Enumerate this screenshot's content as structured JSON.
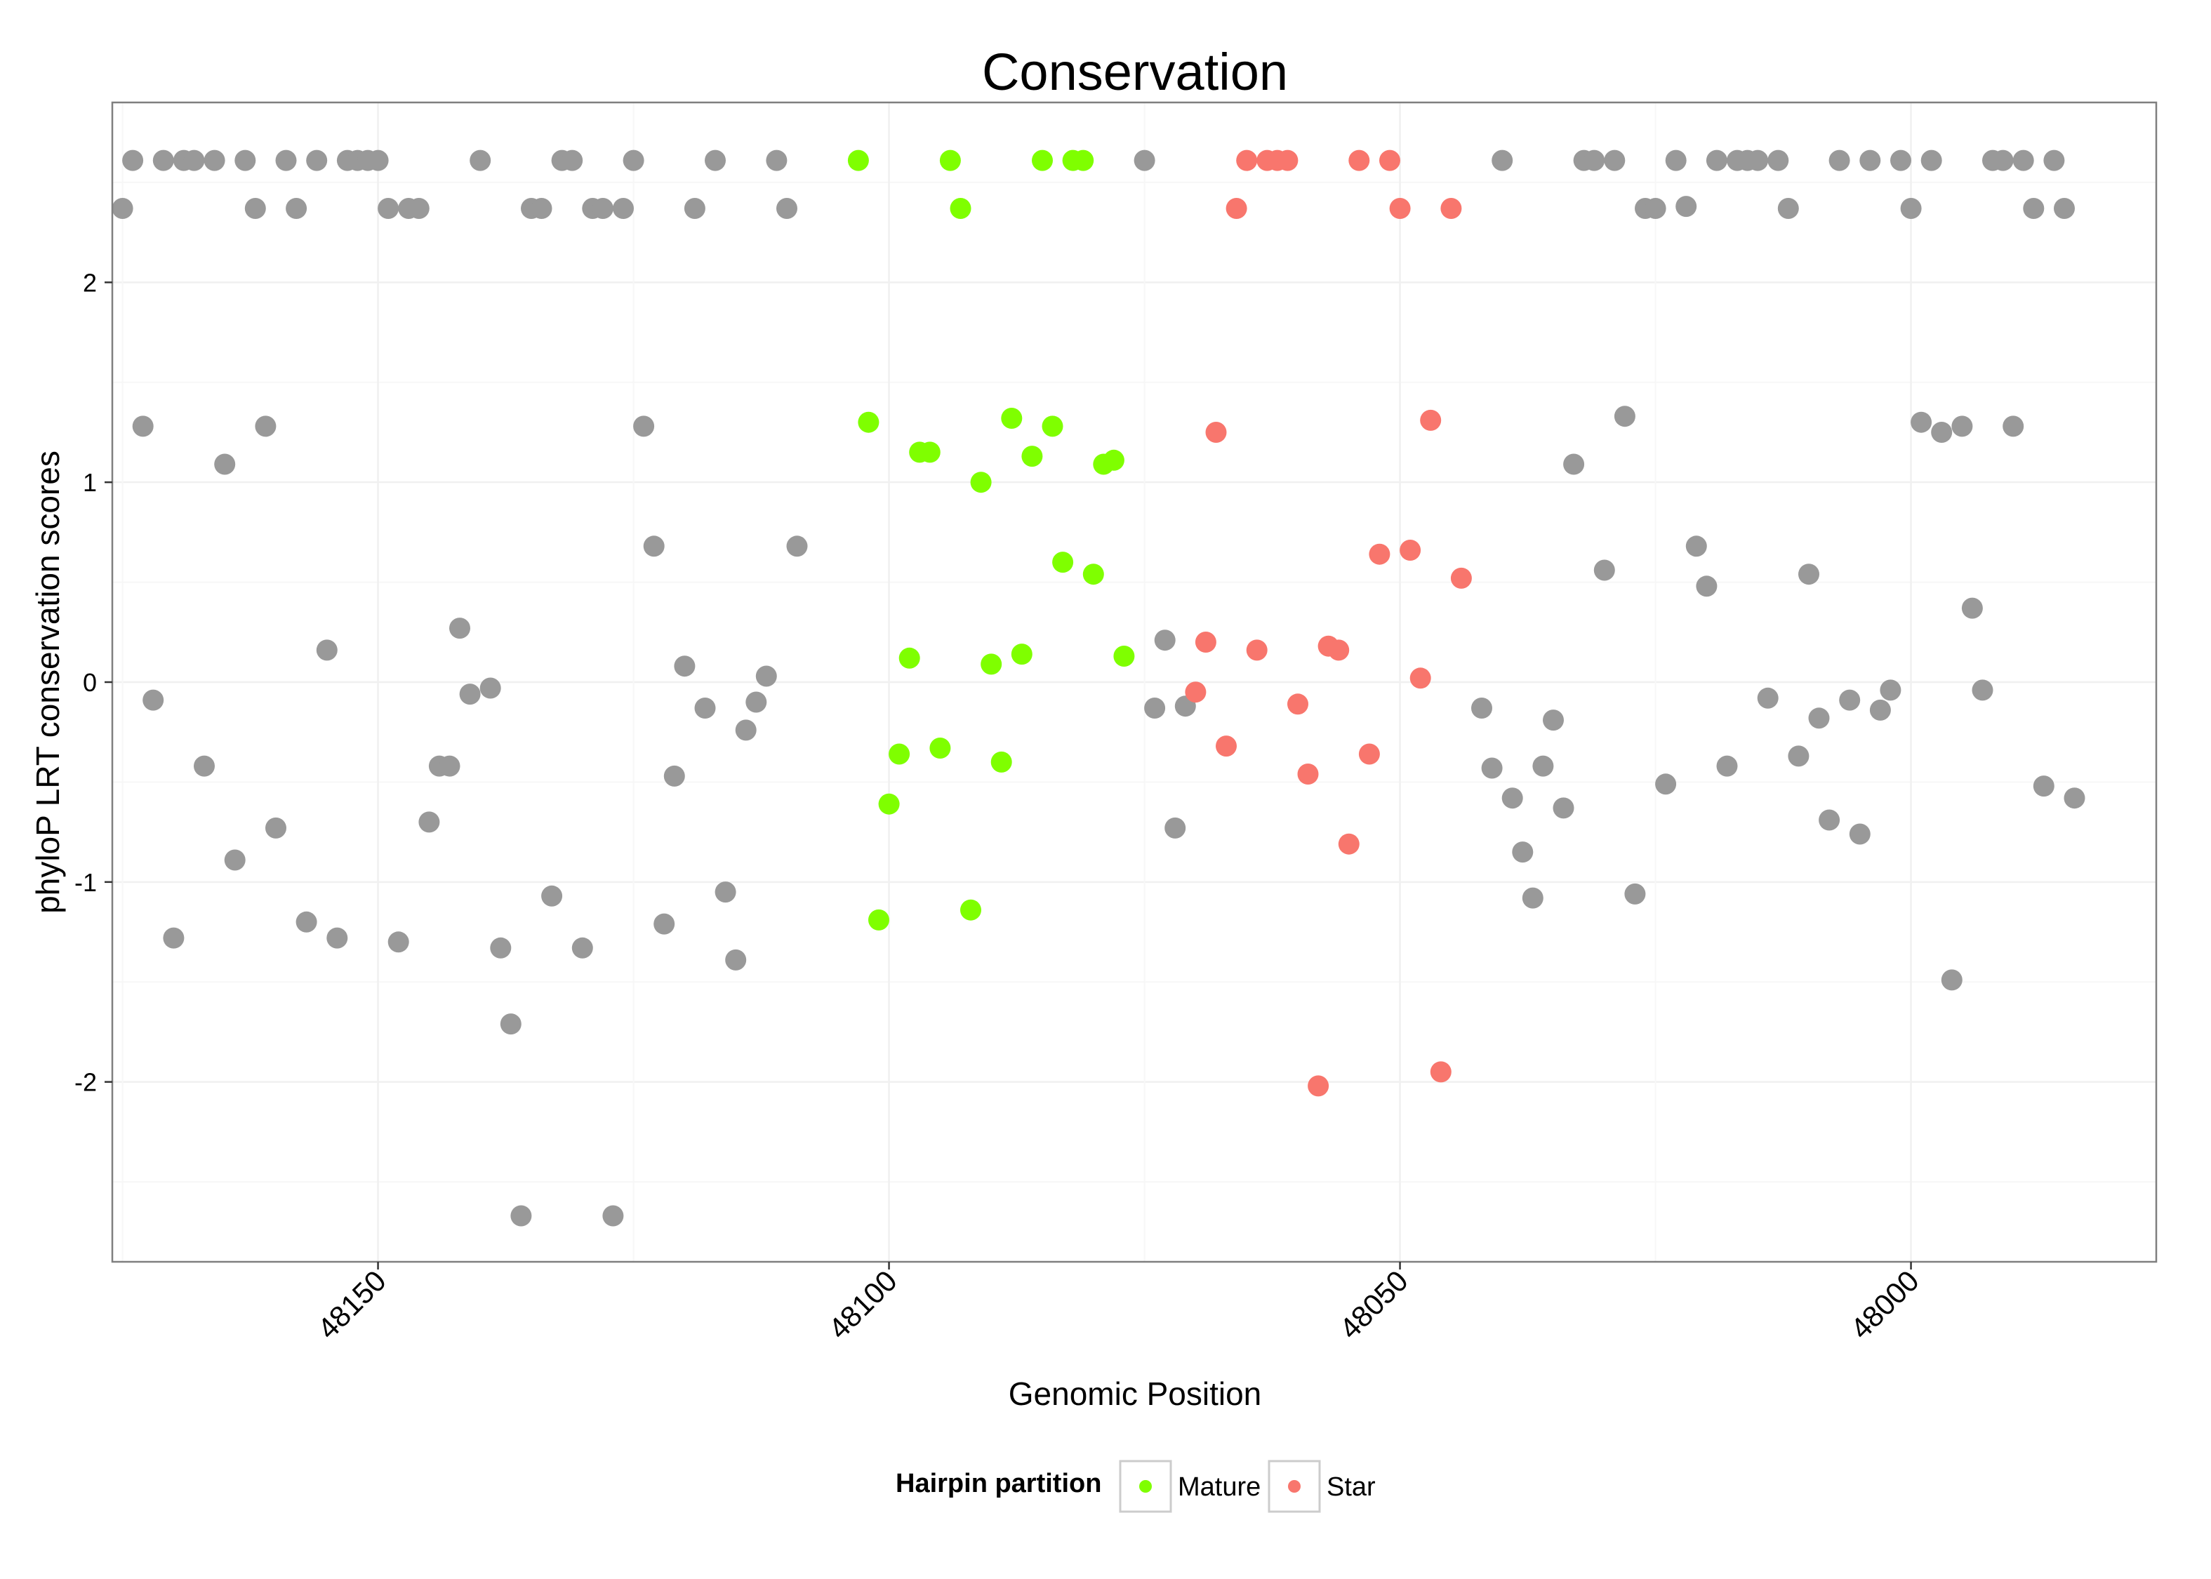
{
  "chart_data": {
    "type": "scatter",
    "title": "Conservation",
    "xlabel": "Genomic Position",
    "ylabel": "phyloP LRT conservation scores",
    "x_reversed": true,
    "xlim": [
      48176,
      47976
    ],
    "ylim": [
      -2.9,
      2.9
    ],
    "x_ticks": [
      48150,
      48100,
      48050,
      48000
    ],
    "y_ticks": [
      -2,
      -1,
      0,
      1,
      2
    ],
    "grid": true,
    "legend": {
      "title": "Hairpin partition",
      "position": "bottom",
      "entries": [
        {
          "label": "Mature",
          "color": "#7FFF00"
        },
        {
          "label": "Star",
          "color": "#F8766D"
        }
      ]
    },
    "colors": {
      "other": "#999999",
      "Mature": "#7FFF00",
      "Star": "#F8766D"
    },
    "series": [
      {
        "name": "",
        "group": "other",
        "points": [
          [
            48175,
            2.37
          ],
          [
            48174,
            2.61
          ],
          [
            48173,
            1.28
          ],
          [
            48172,
            -0.09
          ],
          [
            48171,
            2.61
          ],
          [
            48170,
            -1.28
          ],
          [
            48169,
            2.61
          ],
          [
            48168,
            2.61
          ],
          [
            48167,
            -0.42
          ],
          [
            48166,
            2.61
          ],
          [
            48165,
            1.09
          ],
          [
            48164,
            -0.89
          ],
          [
            48163,
            2.61
          ],
          [
            48162,
            2.37
          ],
          [
            48161,
            1.28
          ],
          [
            48160,
            -0.73
          ],
          [
            48159,
            2.61
          ],
          [
            48158,
            2.37
          ],
          [
            48157,
            -1.2
          ],
          [
            48156,
            2.61
          ],
          [
            48155,
            0.16
          ],
          [
            48154,
            -1.28
          ],
          [
            48153,
            2.61
          ],
          [
            48152,
            2.61
          ],
          [
            48151,
            2.61
          ],
          [
            48150,
            2.61
          ],
          [
            48149,
            2.37
          ],
          [
            48148,
            -1.3
          ],
          [
            48147,
            2.37
          ],
          [
            48146,
            2.37
          ],
          [
            48145,
            -0.7
          ],
          [
            48144,
            -0.42
          ],
          [
            48143,
            -0.42
          ],
          [
            48142,
            0.27
          ],
          [
            48141,
            -0.06
          ],
          [
            48140,
            2.61
          ],
          [
            48139,
            -0.03
          ],
          [
            48138,
            -1.33
          ],
          [
            48137,
            -1.71
          ],
          [
            48136,
            -2.67
          ],
          [
            48135,
            2.37
          ],
          [
            48134,
            2.37
          ],
          [
            48133,
            -1.07
          ],
          [
            48132,
            2.61
          ],
          [
            48131,
            2.61
          ],
          [
            48130,
            -1.33
          ],
          [
            48129,
            2.37
          ],
          [
            48128,
            2.37
          ],
          [
            48127,
            -2.67
          ],
          [
            48126,
            2.37
          ],
          [
            48125,
            2.61
          ],
          [
            48124,
            1.28
          ],
          [
            48123,
            0.68
          ],
          [
            48122,
            -1.21
          ],
          [
            48121,
            -0.47
          ],
          [
            48120,
            0.08
          ],
          [
            48119,
            2.37
          ],
          [
            48118,
            -0.13
          ],
          [
            48117,
            2.61
          ],
          [
            48116,
            -1.05
          ],
          [
            48115,
            -1.39
          ],
          [
            48114,
            -0.24
          ],
          [
            48113,
            -0.1
          ],
          [
            48112,
            0.03
          ],
          [
            48111,
            2.61
          ],
          [
            48110,
            2.37
          ],
          [
            48109,
            0.68
          ],
          [
            48074,
            -0.13
          ],
          [
            48075,
            2.61
          ],
          [
            48073,
            0.21
          ],
          [
            48072,
            -0.73
          ],
          [
            48071,
            -0.12
          ],
          [
            48042,
            -0.13
          ],
          [
            48041,
            -0.43
          ],
          [
            48040,
            2.61
          ],
          [
            48039,
            -0.58
          ],
          [
            48038,
            -0.85
          ],
          [
            48037,
            -1.08
          ],
          [
            48036,
            -0.42
          ],
          [
            48035,
            -0.19
          ],
          [
            48034,
            -0.63
          ],
          [
            48033,
            1.09
          ],
          [
            48032,
            2.61
          ],
          [
            48031,
            2.61
          ],
          [
            48030,
            0.56
          ],
          [
            48029,
            2.61
          ],
          [
            48028,
            1.33
          ],
          [
            48027,
            -1.06
          ],
          [
            48026,
            2.37
          ],
          [
            48025,
            2.37
          ],
          [
            48024,
            -0.51
          ],
          [
            48023,
            2.61
          ],
          [
            48022,
            2.38
          ],
          [
            48021,
            0.68
          ],
          [
            48020,
            0.48
          ],
          [
            48019,
            2.61
          ],
          [
            48018,
            -0.42
          ],
          [
            48017,
            2.61
          ],
          [
            48016,
            2.61
          ],
          [
            48015,
            2.61
          ],
          [
            48014,
            -0.08
          ],
          [
            48013,
            2.61
          ],
          [
            48012,
            2.37
          ],
          [
            48011,
            -0.37
          ],
          [
            48010,
            0.54
          ],
          [
            48009,
            -0.18
          ],
          [
            48008,
            -0.69
          ],
          [
            48007,
            2.61
          ],
          [
            48006,
            -0.09
          ],
          [
            48005,
            -0.76
          ],
          [
            48004,
            2.61
          ],
          [
            48003,
            -0.14
          ],
          [
            48002,
            -0.04
          ],
          [
            48001,
            2.61
          ],
          [
            48000,
            2.37
          ],
          [
            47999,
            1.3
          ],
          [
            47998,
            2.61
          ],
          [
            47997,
            1.25
          ],
          [
            47996,
            -1.49
          ],
          [
            47995,
            1.28
          ],
          [
            47994,
            0.37
          ],
          [
            47993,
            -0.04
          ],
          [
            47992,
            2.61
          ],
          [
            47991,
            2.61
          ],
          [
            47990,
            1.28
          ],
          [
            47989,
            2.61
          ],
          [
            47988,
            2.37
          ],
          [
            47987,
            -0.52
          ],
          [
            47986,
            2.61
          ],
          [
            47985,
            2.37
          ],
          [
            47984,
            -0.58
          ]
        ]
      },
      {
        "name": "Mature",
        "group": "Mature",
        "points": [
          [
            48103,
            2.61
          ],
          [
            48102,
            1.3
          ],
          [
            48101,
            -1.19
          ],
          [
            48100,
            -0.61
          ],
          [
            48099,
            -0.36
          ],
          [
            48098,
            0.12
          ],
          [
            48097,
            1.15
          ],
          [
            48096,
            1.15
          ],
          [
            48095,
            -0.33
          ],
          [
            48094,
            2.61
          ],
          [
            48093,
            2.37
          ],
          [
            48092,
            -1.14
          ],
          [
            48091,
            1.0
          ],
          [
            48090,
            0.09
          ],
          [
            48089,
            -0.4
          ],
          [
            48088,
            1.32
          ],
          [
            48087,
            0.14
          ],
          [
            48086,
            1.13
          ],
          [
            48085,
            2.61
          ],
          [
            48084,
            1.28
          ],
          [
            48083,
            0.6
          ],
          [
            48082,
            2.61
          ],
          [
            48081,
            2.61
          ],
          [
            48080,
            0.54
          ],
          [
            48079,
            1.09
          ],
          [
            48078,
            1.11
          ],
          [
            48077,
            0.13
          ]
        ]
      },
      {
        "name": "Star",
        "group": "Star",
        "points": [
          [
            48070,
            -0.05
          ],
          [
            48069,
            0.2
          ],
          [
            48068,
            1.25
          ],
          [
            48067,
            -0.32
          ],
          [
            48066,
            2.37
          ],
          [
            48065,
            2.61
          ],
          [
            48064,
            0.16
          ],
          [
            48063,
            2.61
          ],
          [
            48062,
            2.61
          ],
          [
            48061,
            2.61
          ],
          [
            48060,
            -0.11
          ],
          [
            48059,
            -0.46
          ],
          [
            48058,
            -2.02
          ],
          [
            48057,
            0.18
          ],
          [
            48056,
            0.16
          ],
          [
            48055,
            -0.81
          ],
          [
            48054,
            2.61
          ],
          [
            48053,
            -0.36
          ],
          [
            48052,
            0.64
          ],
          [
            48051,
            2.61
          ],
          [
            48050,
            2.37
          ],
          [
            48049,
            0.66
          ],
          [
            48048,
            0.02
          ],
          [
            48047,
            1.31
          ],
          [
            48046,
            -1.95
          ],
          [
            48045,
            2.37
          ],
          [
            48044,
            0.52
          ]
        ]
      }
    ]
  }
}
